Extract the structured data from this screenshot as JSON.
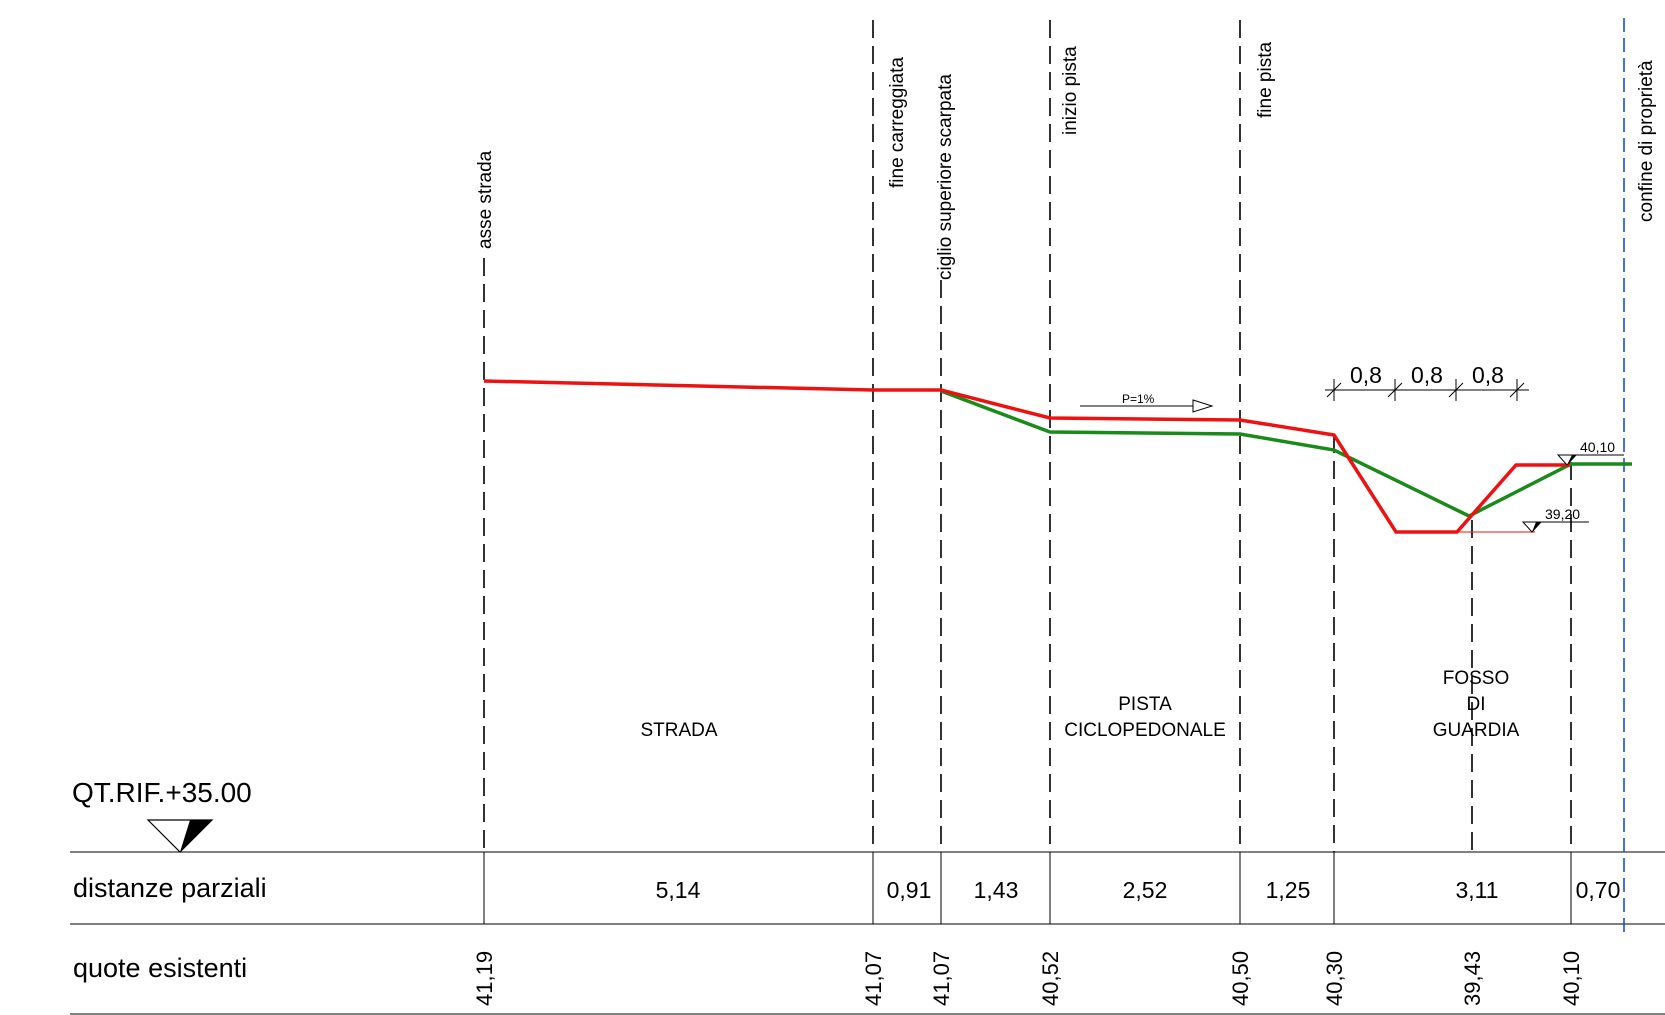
{
  "reference_level": "QT.RIF.+35.00",
  "table": {
    "row_partial_distances": "distanze parziali",
    "row_existing_levels": "quote esistenti"
  },
  "verticals": [
    {
      "label": "asse strada",
      "quota": "41,19"
    },
    {
      "label": "fine carreggiata",
      "quota": "41,07"
    },
    {
      "label": "ciglio superiore scarpata",
      "quota": "41,07"
    },
    {
      "label": "inizio pista",
      "quota": "40,52"
    },
    {
      "label": "fine pista",
      "quota": "40,50"
    },
    {
      "label": "",
      "quota": "40,30"
    },
    {
      "label": "",
      "quota": "39,43"
    },
    {
      "label": "",
      "quota": "40,10"
    },
    {
      "label": "confine di proprietà",
      "quota": ""
    }
  ],
  "partial_distances": [
    "5,14",
    "0,91",
    "1,43",
    "2,52",
    "1,25",
    "3,11",
    "0,70"
  ],
  "zones": {
    "strada": "STRADA",
    "pista_line1": "PISTA",
    "pista_line2": "CICLOPEDONALE",
    "fosso_line1": "FOSSO",
    "fosso_line2": "DI",
    "fosso_line3": "GUARDIA"
  },
  "slope_label": "P=1%",
  "ditch_dimensions": [
    "0,8",
    "0,8",
    "0,8"
  ],
  "level_markers": {
    "top": "40,10",
    "bottom": "39,20"
  },
  "colors": {
    "project_profile": "#ee1111",
    "existing_profile": "#1a8a1a",
    "property_line": "#1a4fd6",
    "lines": "#000000"
  }
}
